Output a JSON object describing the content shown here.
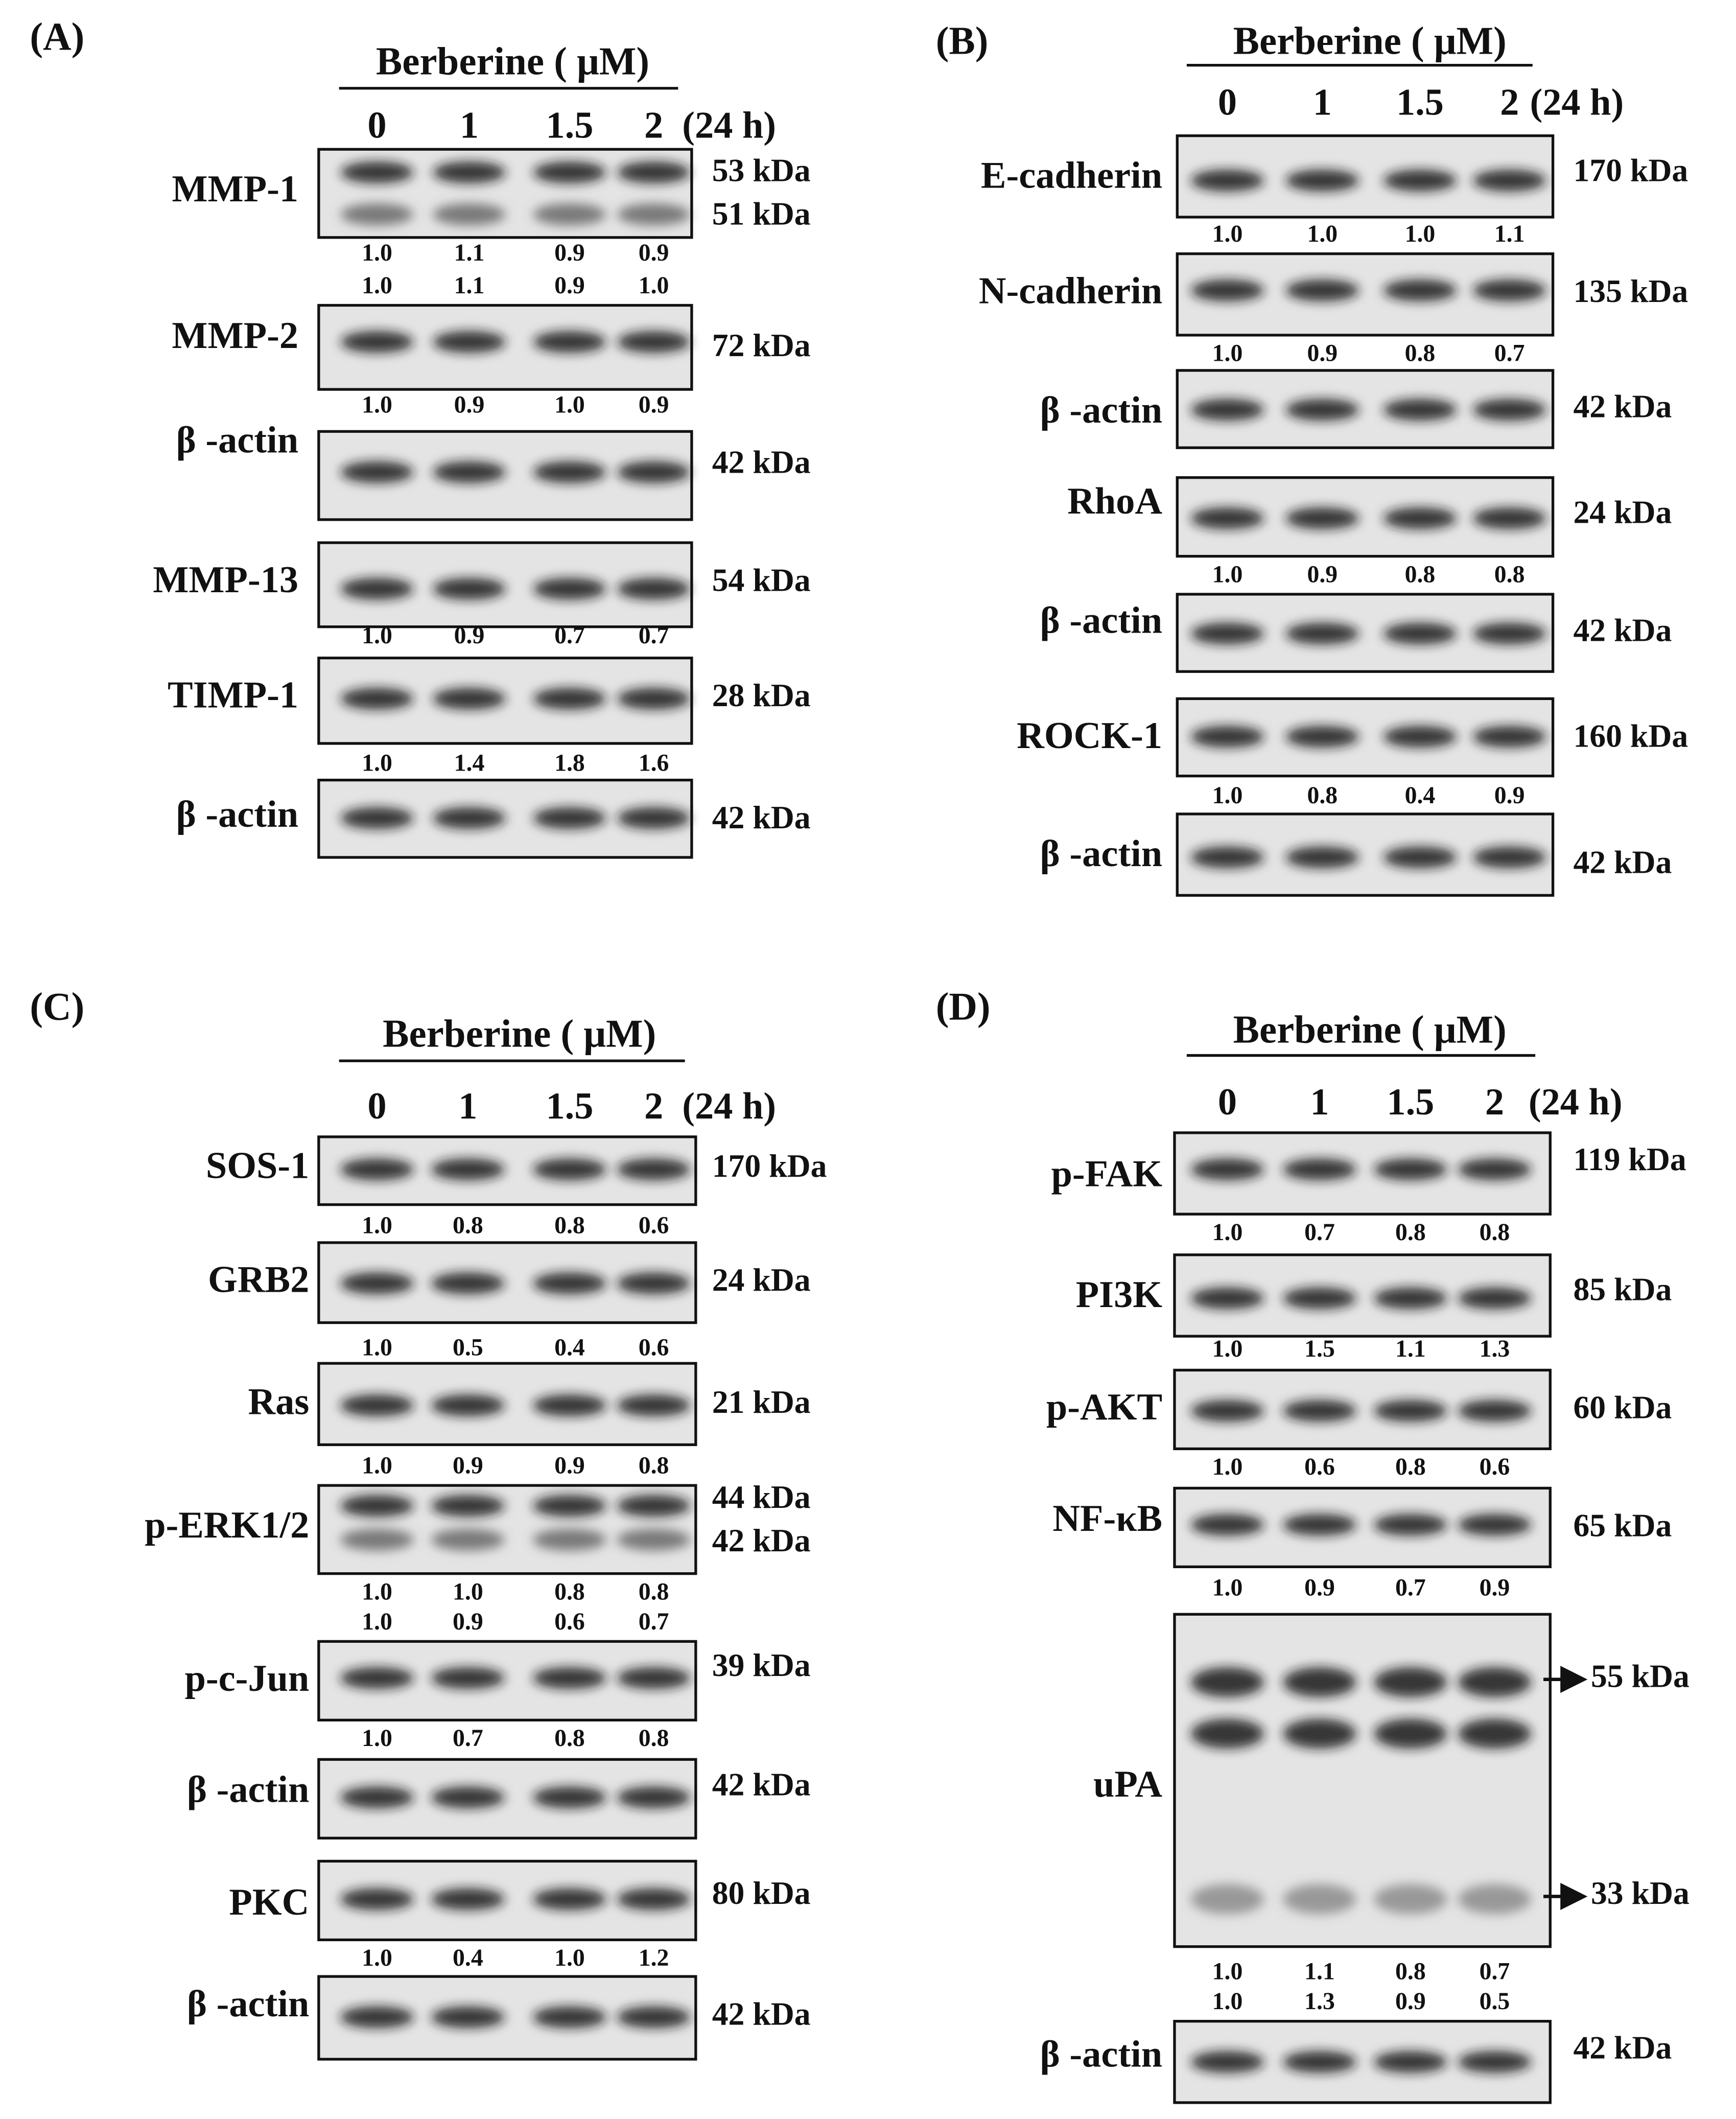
{
  "panels": [
    {
      "label": "(A)",
      "header": "Berberine ( μM)",
      "doses": [
        "0",
        "1",
        "1.5",
        "2"
      ],
      "time": "(24 h)",
      "blots": [
        {
          "name": "MMP-1",
          "kda": [
            "53 kDa",
            "51 kDa"
          ],
          "ratios": [
            [
              "1.0",
              "1.1",
              "0.9",
              "0.9"
            ],
            [
              "1.0",
              "1.1",
              "0.9",
              "1.0"
            ]
          ]
        },
        {
          "name": "MMP-2",
          "kda": [
            "72 kDa"
          ],
          "ratios": [
            [
              "1.0",
              "0.9",
              "1.0",
              "0.9"
            ]
          ]
        },
        {
          "name": "β -actin",
          "kda": [
            "42 kDa"
          ],
          "ratios": []
        },
        {
          "name": "MMP-13",
          "kda": [
            "54 kDa"
          ],
          "ratios": [
            [
              "1.0",
              "0.9",
              "0.7",
              "0.7"
            ]
          ]
        },
        {
          "name": "TIMP-1",
          "kda": [
            "28 kDa"
          ],
          "ratios": [
            [
              "1.0",
              "1.4",
              "1.8",
              "1.6"
            ]
          ]
        },
        {
          "name": "β -actin",
          "kda": [
            "42 kDa"
          ],
          "ratios": []
        }
      ]
    },
    {
      "label": "(B)",
      "header": "Berberine ( μM)",
      "doses": [
        "0",
        "1",
        "1.5",
        "2"
      ],
      "time": "(24 h)",
      "blots": [
        {
          "name": "E-cadherin",
          "kda": [
            "170 kDa"
          ],
          "ratios": [
            [
              "1.0",
              "1.0",
              "1.0",
              "1.1"
            ]
          ]
        },
        {
          "name": "N-cadherin",
          "kda": [
            "135 kDa"
          ],
          "ratios": [
            [
              "1.0",
              "0.9",
              "0.8",
              "0.7"
            ]
          ]
        },
        {
          "name": "β -actin",
          "kda": [
            "42 kDa"
          ],
          "ratios": []
        },
        {
          "name": "RhoA",
          "kda": [
            "24 kDa"
          ],
          "ratios": [
            [
              "1.0",
              "0.9",
              "0.8",
              "0.8"
            ]
          ]
        },
        {
          "name": "β -actin",
          "kda": [
            "42 kDa"
          ],
          "ratios": []
        },
        {
          "name": "ROCK-1",
          "kda": [
            "160 kDa"
          ],
          "ratios": [
            [
              "1.0",
              "0.8",
              "0.4",
              "0.9"
            ]
          ]
        },
        {
          "name": "β -actin",
          "kda": [
            "42 kDa"
          ],
          "ratios": []
        }
      ]
    },
    {
      "label": "(C)",
      "header": "Berberine ( μM)",
      "doses": [
        "0",
        "1",
        "1.5",
        "2"
      ],
      "time": "(24 h)",
      "blots": [
        {
          "name": "SOS-1",
          "kda": [
            "170 kDa"
          ],
          "ratios": [
            [
              "1.0",
              "0.8",
              "0.8",
              "0.6"
            ]
          ]
        },
        {
          "name": "GRB2",
          "kda": [
            "24 kDa"
          ],
          "ratios": [
            [
              "1.0",
              "0.5",
              "0.4",
              "0.6"
            ]
          ]
        },
        {
          "name": "Ras",
          "kda": [
            "21 kDa"
          ],
          "ratios": [
            [
              "1.0",
              "0.9",
              "0.9",
              "0.8"
            ]
          ]
        },
        {
          "name": "p-ERK1/2",
          "kda": [
            "44 kDa",
            "42 kDa"
          ],
          "ratios": [
            [
              "1.0",
              "1.0",
              "0.8",
              "0.8"
            ],
            [
              "1.0",
              "0.9",
              "0.6",
              "0.7"
            ]
          ]
        },
        {
          "name": "p-c-Jun",
          "kda": [
            "39 kDa"
          ],
          "ratios": [
            [
              "1.0",
              "0.7",
              "0.8",
              "0.8"
            ]
          ]
        },
        {
          "name": "β -actin",
          "kda": [
            "42 kDa"
          ],
          "ratios": []
        },
        {
          "name": "PKC",
          "kda": [
            "80 kDa"
          ],
          "ratios": [
            [
              "1.0",
              "0.4",
              "1.0",
              "1.2"
            ]
          ]
        },
        {
          "name": "β -actin",
          "kda": [
            "42 kDa"
          ],
          "ratios": []
        }
      ]
    },
    {
      "label": "(D)",
      "header": "Berberine ( μM)",
      "doses": [
        "0",
        "1",
        "1.5",
        "2"
      ],
      "time": "(24 h)",
      "blots": [
        {
          "name": "p-FAK",
          "kda": [
            "119 kDa"
          ],
          "ratios": [
            [
              "1.0",
              "0.7",
              "0.8",
              "0.8"
            ]
          ]
        },
        {
          "name": "PI3K",
          "kda": [
            "85 kDa"
          ],
          "ratios": [
            [
              "1.0",
              "1.5",
              "1.1",
              "1.3"
            ]
          ]
        },
        {
          "name": "p-AKT",
          "kda": [
            "60 kDa"
          ],
          "ratios": [
            [
              "1.0",
              "0.6",
              "0.8",
              "0.6"
            ]
          ]
        },
        {
          "name": "NF-κB",
          "kda": [
            "65 kDa"
          ],
          "ratios": [
            [
              "1.0",
              "0.9",
              "0.7",
              "0.9"
            ]
          ]
        },
        {
          "name": "uPA",
          "kda": [
            "55 kDa",
            "33 kDa"
          ],
          "ratios": [
            [
              "1.0",
              "1.1",
              "0.8",
              "0.7"
            ],
            [
              "1.0",
              "1.3",
              "0.9",
              "0.5"
            ]
          ]
        },
        {
          "name": "β -actin",
          "kda": [
            "42 kDa"
          ],
          "ratios": []
        }
      ]
    }
  ]
}
